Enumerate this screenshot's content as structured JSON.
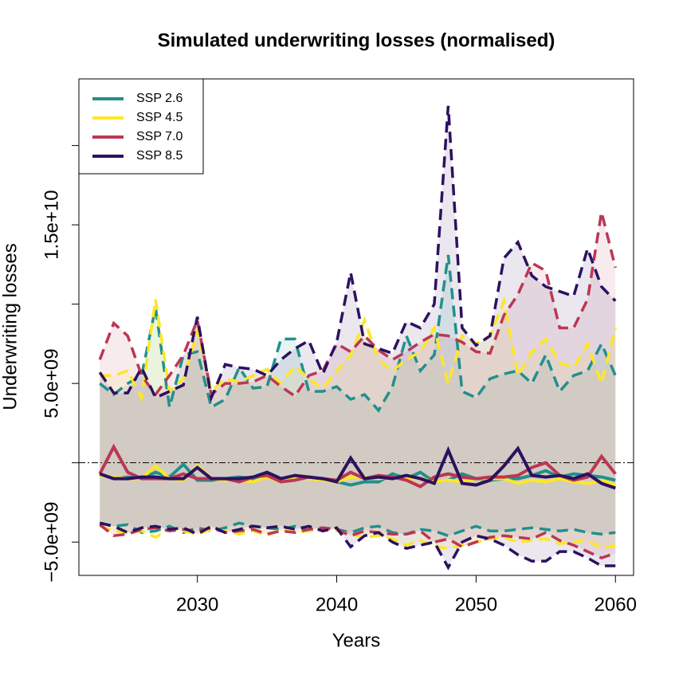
{
  "chart_data": {
    "type": "band-line",
    "title": "Simulated underwriting losses (normalised)",
    "xlabel": "Years",
    "ylabel": "Underwriting losses",
    "x": [
      2023,
      2024,
      2025,
      2026,
      2027,
      2028,
      2029,
      2030,
      2031,
      2032,
      2033,
      2034,
      2035,
      2036,
      2037,
      2038,
      2039,
      2040,
      2041,
      2042,
      2043,
      2044,
      2045,
      2046,
      2047,
      2048,
      2049,
      2050,
      2051,
      2052,
      2053,
      2054,
      2055,
      2056,
      2057,
      2058,
      2059,
      2060
    ],
    "xlim": [
      2021.5,
      2061.3
    ],
    "xticks": [
      2030,
      2040,
      2050,
      2060
    ],
    "ylim": [
      -7100000000.0,
      24200000000.0
    ],
    "yticks": [
      {
        "value": -5000000000.0,
        "label": "−5.0e+09"
      },
      {
        "value": 5000000000.0,
        "label": "5.0e+09"
      },
      {
        "value": 15000000000.0,
        "label": "1.5e+10"
      }
    ],
    "yticks_minor": [
      0,
      10000000000.0,
      20000000000.0
    ],
    "hline": 0,
    "legend": "top-left",
    "series": [
      {
        "name": "SSP 2.6",
        "color": "#21908c",
        "values": [
          -700000000.0,
          -1000000000.0,
          -900000000.0,
          -1000000000.0,
          -600000000.0,
          -900000000.0,
          -100000000.0,
          -1100000000.0,
          -1100000000.0,
          -1000000000.0,
          -900000000.0,
          -1000000000.0,
          -700000000.0,
          -1100000000.0,
          -900000000.0,
          -1000000000.0,
          -1000000000.0,
          -1200000000.0,
          -1400000000.0,
          -1200000000.0,
          -1200000000.0,
          -700000000.0,
          -1000000000.0,
          -600000000.0,
          -1200000000.0,
          -1100000000.0,
          -700000000.0,
          -1000000000.0,
          -1100000000.0,
          -1000000000.0,
          -1000000000.0,
          -800000000.0,
          -500000000.0,
          -900000000.0,
          -700000000.0,
          -800000000.0,
          -900000000.0,
          -1100000000.0
        ],
        "upper": [
          5000000000.0,
          4300000000.0,
          5000000000.0,
          5500000000.0,
          9800000000.0,
          3500000000.0,
          6800000000.0,
          7000000000.0,
          3500000000.0,
          4000000000.0,
          6000000000.0,
          4700000000.0,
          4800000000.0,
          7800000000.0,
          7800000000.0,
          4500000000.0,
          4500000000.0,
          4800000000.0,
          4000000000.0,
          4300000000.0,
          3300000000.0,
          4800000000.0,
          8000000000.0,
          5800000000.0,
          6800000000.0,
          13100000000.0,
          4500000000.0,
          4100000000.0,
          5300000000.0,
          5600000000.0,
          5800000000.0,
          5000000000.0,
          6800000000.0,
          4500000000.0,
          5500000000.0,
          5800000000.0,
          7500000000.0,
          5500000000.0
        ],
        "lower": [
          -3800000000.0,
          -4000000000.0,
          -3900000000.0,
          -4400000000.0,
          -4300000000.0,
          -4000000000.0,
          -4400000000.0,
          -4100000000.0,
          -4300000000.0,
          -4100000000.0,
          -3800000000.0,
          -4000000000.0,
          -4100000000.0,
          -4200000000.0,
          -4000000000.0,
          -4300000000.0,
          -4100000000.0,
          -4200000000.0,
          -4400000000.0,
          -4100000000.0,
          -4000000000.0,
          -4400000000.0,
          -4500000000.0,
          -4200000000.0,
          -4300000000.0,
          -4600000000.0,
          -4300000000.0,
          -4000000000.0,
          -4300000000.0,
          -4300000000.0,
          -4200000000.0,
          -4100000000.0,
          -4200000000.0,
          -4300000000.0,
          -4200000000.0,
          -4400000000.0,
          -4500000000.0,
          -4400000000.0
        ]
      },
      {
        "name": "SSP 4.5",
        "color": "#fde725",
        "values": [
          -800000000.0,
          -900000000.0,
          -1000000000.0,
          -1000000000.0,
          -200000000.0,
          -1000000000.0,
          -1100000000.0,
          -200000000.0,
          -1000000000.0,
          -1100000000.0,
          -1100000000.0,
          -1200000000.0,
          -900000000.0,
          -1200000000.0,
          -1000000000.0,
          -1000000000.0,
          -1100000000.0,
          -1200000000.0,
          -900000000.0,
          -900000000.0,
          -1000000000.0,
          -900000000.0,
          -1000000000.0,
          -1000000000.0,
          -1200000000.0,
          -1100000000.0,
          -1200000000.0,
          -1000000000.0,
          -1000000000.0,
          -1000000000.0,
          -1300000000.0,
          -1100000000.0,
          -1200000000.0,
          -1000000000.0,
          -1200000000.0,
          -1300000000.0,
          -1100000000.0,
          -1400000000.0
        ],
        "upper": [
          5500000000.0,
          5500000000.0,
          5800000000.0,
          4100000000.0,
          10300000000.0,
          4500000000.0,
          5300000000.0,
          8300000000.0,
          4500000000.0,
          5300000000.0,
          5100000000.0,
          5500000000.0,
          5900000000.0,
          5000000000.0,
          6100000000.0,
          5300000000.0,
          4700000000.0,
          5800000000.0,
          6800000000.0,
          9000000000.0,
          6500000000.0,
          5800000000.0,
          6500000000.0,
          7000000000.0,
          8500000000.0,
          5000000000.0,
          8000000000.0,
          7500000000.0,
          8000000000.0,
          10200000000.0,
          5500000000.0,
          7000000000.0,
          7800000000.0,
          6300000000.0,
          6000000000.0,
          7500000000.0,
          5000000000.0,
          8500000000.0
        ],
        "lower": [
          -4000000000.0,
          -4300000000.0,
          -4400000000.0,
          -4300000000.0,
          -4700000000.0,
          -4200000000.0,
          -4300000000.0,
          -4500000000.0,
          -4200000000.0,
          -4300000000.0,
          -4500000000.0,
          -4300000000.0,
          -4600000000.0,
          -4200000000.0,
          -4400000000.0,
          -4300000000.0,
          -4100000000.0,
          -4300000000.0,
          -4500000000.0,
          -4700000000.0,
          -4600000000.0,
          -4800000000.0,
          -5200000000.0,
          -4900000000.0,
          -5300000000.0,
          -5400000000.0,
          -5200000000.0,
          -5000000000.0,
          -4800000000.0,
          -4700000000.0,
          -5000000000.0,
          -4900000000.0,
          -4800000000.0,
          -5100000000.0,
          -5000000000.0,
          -4900000000.0,
          -5400000000.0,
          -5200000000.0
        ]
      },
      {
        "name": "SSP 7.0",
        "color": "#bb3754",
        "values": [
          -700000000.0,
          1000000000.0,
          -600000000.0,
          -1000000000.0,
          -1000000000.0,
          -1000000000.0,
          -700000000.0,
          -1000000000.0,
          -1000000000.0,
          -1000000000.0,
          -1200000000.0,
          -900000000.0,
          -800000000.0,
          -1200000000.0,
          -1100000000.0,
          -900000000.0,
          -1000000000.0,
          -1100000000.0,
          -600000000.0,
          -1000000000.0,
          -800000000.0,
          -900000000.0,
          -1100000000.0,
          -1500000000.0,
          -900000000.0,
          -700000000.0,
          -900000000.0,
          -1000000000.0,
          -900000000.0,
          -900000000.0,
          -800000000.0,
          -300000000.0,
          0.0,
          -800000000.0,
          -1100000000.0,
          -900000000.0,
          400000000.0,
          -700000000.0
        ],
        "upper": [
          6500000000.0,
          8800000000.0,
          8000000000.0,
          5500000000.0,
          4300000000.0,
          5500000000.0,
          6800000000.0,
          9000000000.0,
          4300000000.0,
          5000000000.0,
          5000000000.0,
          5100000000.0,
          5500000000.0,
          4800000000.0,
          4200000000.0,
          5500000000.0,
          5800000000.0,
          7500000000.0,
          7000000000.0,
          8000000000.0,
          7100000000.0,
          6500000000.0,
          7000000000.0,
          7600000000.0,
          8100000000.0,
          8000000000.0,
          7600000000.0,
          7000000000.0,
          6900000000.0,
          9300000000.0,
          10600000000.0,
          12600000000.0,
          12100000000.0,
          8500000000.0,
          8500000000.0,
          10300000000.0,
          15800000000.0,
          12300000000.0
        ],
        "lower": [
          -3900000000.0,
          -4600000000.0,
          -4500000000.0,
          -4200000000.0,
          -4100000000.0,
          -4300000000.0,
          -4200000000.0,
          -4300000000.0,
          -4100000000.0,
          -4400000000.0,
          -4300000000.0,
          -4200000000.0,
          -4500000000.0,
          -4300000000.0,
          -4400000000.0,
          -4200000000.0,
          -4100000000.0,
          -4200000000.0,
          -4600000000.0,
          -4300000000.0,
          -4400000000.0,
          -4500000000.0,
          -4500000000.0,
          -4300000000.0,
          -5000000000.0,
          -4800000000.0,
          -5300000000.0,
          -5000000000.0,
          -4700000000.0,
          -4600000000.0,
          -4700000000.0,
          -4800000000.0,
          -4400000000.0,
          -4900000000.0,
          -5200000000.0,
          -5600000000.0,
          -6000000000.0,
          -5700000000.0
        ]
      },
      {
        "name": "SSP 8.5",
        "color": "#2d1160",
        "values": [
          -700000000.0,
          -1000000000.0,
          -1000000000.0,
          -900000000.0,
          -900000000.0,
          -1000000000.0,
          -1000000000.0,
          -300000000.0,
          -1000000000.0,
          -1000000000.0,
          -1000000000.0,
          -900000000.0,
          -600000000.0,
          -1000000000.0,
          -800000000.0,
          -900000000.0,
          -1000000000.0,
          -1200000000.0,
          300000000.0,
          -1000000000.0,
          -900000000.0,
          -1000000000.0,
          -800000000.0,
          -1000000000.0,
          -1300000000.0,
          800000000.0,
          -1300000000.0,
          -1400000000.0,
          -1100000000.0,
          -200000000.0,
          900000000.0,
          -800000000.0,
          -900000000.0,
          -800000000.0,
          -1000000000.0,
          -700000000.0,
          -1300000000.0,
          -1600000000.0
        ],
        "upper": [
          5700000000.0,
          4400000000.0,
          4400000000.0,
          6000000000.0,
          4100000000.0,
          4500000000.0,
          4900000000.0,
          9200000000.0,
          4100000000.0,
          6200000000.0,
          6000000000.0,
          5900000000.0,
          5500000000.0,
          6500000000.0,
          7200000000.0,
          7700000000.0,
          5600000000.0,
          7600000000.0,
          12000000000.0,
          7500000000.0,
          7200000000.0,
          6900000000.0,
          8900000000.0,
          8500000000.0,
          10000000000.0,
          22500000000.0,
          8500000000.0,
          7400000000.0,
          8000000000.0,
          12900000000.0,
          13900000000.0,
          11800000000.0,
          11100000000.0,
          10800000000.0,
          10500000000.0,
          13500000000.0,
          11100000000.0,
          10200000000.0
        ],
        "lower": [
          -3800000000.0,
          -4000000000.0,
          -4400000000.0,
          -4100000000.0,
          -4000000000.0,
          -4200000000.0,
          -4100000000.0,
          -4500000000.0,
          -4000000000.0,
          -4400000000.0,
          -4200000000.0,
          -4000000000.0,
          -4100000000.0,
          -4000000000.0,
          -4200000000.0,
          -4000000000.0,
          -4300000000.0,
          -4100000000.0,
          -5300000000.0,
          -4600000000.0,
          -4400000000.0,
          -5000000000.0,
          -5400000000.0,
          -5200000000.0,
          -5000000000.0,
          -6600000000.0,
          -5000000000.0,
          -4600000000.0,
          -4800000000.0,
          -5200000000.0,
          -5800000000.0,
          -6200000000.0,
          -6200000000.0,
          -5600000000.0,
          -5600000000.0,
          -6000000000.0,
          -6500000000.0,
          -6500000000.0
        ]
      }
    ]
  }
}
